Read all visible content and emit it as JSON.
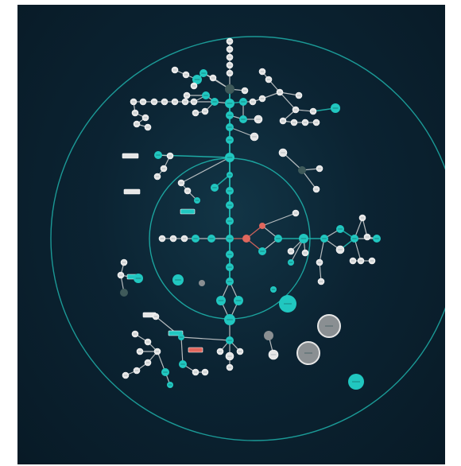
{
  "diagram": {
    "colors": {
      "background": "#0b2332",
      "ring": "#1fb8b0",
      "node_teal": "#21c7c0",
      "node_white": "#e6e6e6",
      "node_grey": "#8a8f92",
      "node_dark": "#3f5a5a",
      "node_salmon": "#e0675d",
      "edge": "#c9cccd",
      "edge_teal": "#1fb8b0"
    },
    "node_styles": [
      "teal",
      "white",
      "grey",
      "dark",
      "salmon",
      "white-ring"
    ],
    "node_count": 118,
    "label_count": 7
  }
}
